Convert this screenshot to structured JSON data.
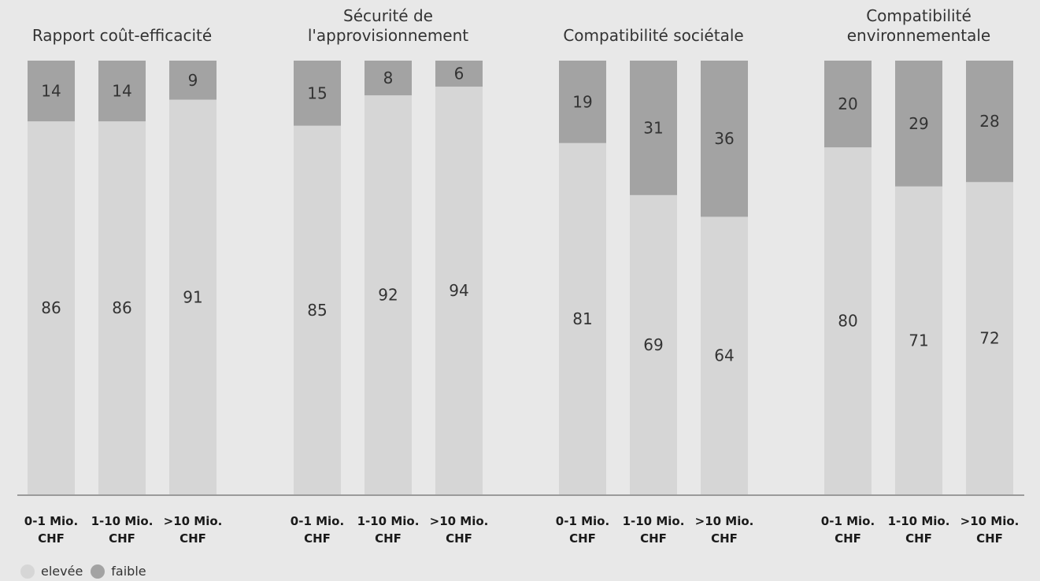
{
  "chart_data": {
    "type": "bar",
    "stacked": true,
    "groups": [
      {
        "title": [
          "Rapport coût-efficacité"
        ],
        "categories": [
          [
            "0-1 Mio.",
            "CHF"
          ],
          [
            "1-10 Mio.",
            "CHF"
          ],
          [
            ">10 Mio.",
            "CHF"
          ]
        ],
        "series": [
          {
            "name": "elevée",
            "values": [
              86,
              86,
              91
            ]
          },
          {
            "name": "faible",
            "values": [
              14,
              14,
              9
            ]
          }
        ]
      },
      {
        "title": [
          "Sécurité de",
          "l'approvisionnement"
        ],
        "categories": [
          [
            "0-1 Mio.",
            "CHF"
          ],
          [
            "1-10 Mio.",
            "CHF"
          ],
          [
            ">10 Mio.",
            "CHF"
          ]
        ],
        "series": [
          {
            "name": "elevée",
            "values": [
              85,
              92,
              94
            ]
          },
          {
            "name": "faible",
            "values": [
              15,
              8,
              6
            ]
          }
        ]
      },
      {
        "title": [
          "Compatibilité sociétale"
        ],
        "categories": [
          [
            "0-1 Mio.",
            "CHF"
          ],
          [
            "1-10 Mio.",
            "CHF"
          ],
          [
            ">10 Mio.",
            "CHF"
          ]
        ],
        "series": [
          {
            "name": "elevée",
            "values": [
              81,
              69,
              64
            ]
          },
          {
            "name": "faible",
            "values": [
              19,
              31,
              36
            ]
          }
        ]
      },
      {
        "title": [
          "Compatibilité",
          "environnementale"
        ],
        "categories": [
          [
            "0-1 Mio.",
            "CHF"
          ],
          [
            "1-10 Mio.",
            "CHF"
          ],
          [
            ">10 Mio.",
            "CHF"
          ]
        ],
        "series": [
          {
            "name": "elevée",
            "values": [
              80,
              71,
              72
            ]
          },
          {
            "name": "faible",
            "values": [
              20,
              29,
              28
            ]
          }
        ]
      }
    ],
    "ylim": [
      0,
      100
    ],
    "grid": false,
    "legend_position": "bottom-left",
    "colors": {
      "elevée": "#d6d6d6",
      "faible": "#a3a3a3",
      "background": "#e8e8e8",
      "axis": "#9a9a9a",
      "text": "#333333",
      "category_text": "#1a1a1a"
    }
  },
  "legend": {
    "items": [
      {
        "label": "elevée",
        "color": "#d6d6d6"
      },
      {
        "label": "faible",
        "color": "#a3a3a3"
      }
    ]
  }
}
